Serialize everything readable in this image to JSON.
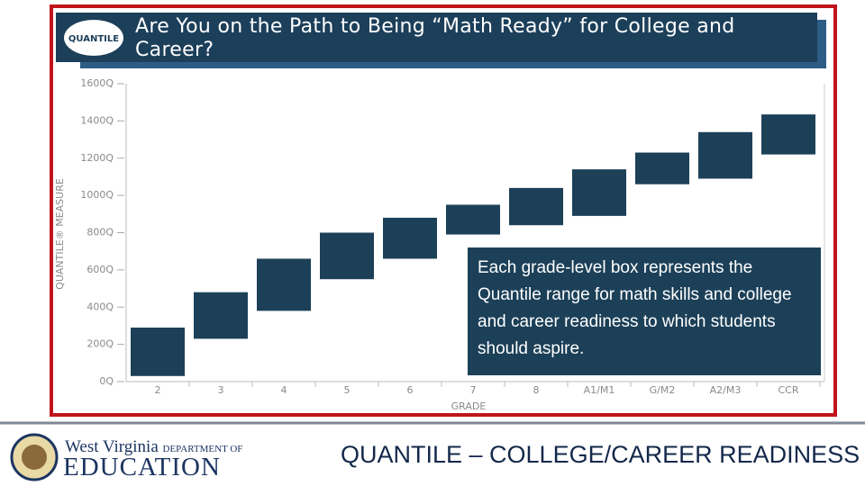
{
  "slide": {
    "logo": "QUANTILE",
    "org_name": "West Virginia",
    "org_dept": "DEPARTMENT OF",
    "org_unit": "EDUCATION",
    "footer_title": "QUANTILE – COLLEGE/CAREER READINESS"
  },
  "chart_data": {
    "type": "range_bar",
    "title": "Are You on the Path to Being “Math Ready” for College and Career?",
    "y_label": "QUANTILE® MEASURE",
    "x_label": "GRADE",
    "annotation": "Each grade-level box represents the Quantile range for math skills and college and career readiness to which students should aspire.",
    "categories": [
      "2",
      "3",
      "4",
      "5",
      "6",
      "7",
      "8",
      "A1/M1",
      "G/M2",
      "A2/M3",
      "CCR"
    ],
    "low": [
      30,
      230,
      380,
      550,
      660,
      790,
      840,
      890,
      1060,
      1090,
      1220
    ],
    "high": [
      290,
      480,
      660,
      800,
      880,
      950,
      1040,
      1140,
      1230,
      1340,
      1435
    ],
    "color": "#1c4058",
    "ylim": [
      0,
      1600
    ],
    "yticks": [
      {
        "value": 0,
        "label": "0Q"
      },
      {
        "value": 200,
        "label": "200Q"
      },
      {
        "value": 400,
        "label": "400Q"
      },
      {
        "value": 600,
        "label": "600Q"
      },
      {
        "value": 800,
        "label": "800Q"
      },
      {
        "value": 1000,
        "label": "1000Q"
      },
      {
        "value": 1200,
        "label": "1200Q"
      },
      {
        "value": 1400,
        "label": "1400Q"
      },
      {
        "value": 1600,
        "label": "1600Q"
      }
    ]
  }
}
